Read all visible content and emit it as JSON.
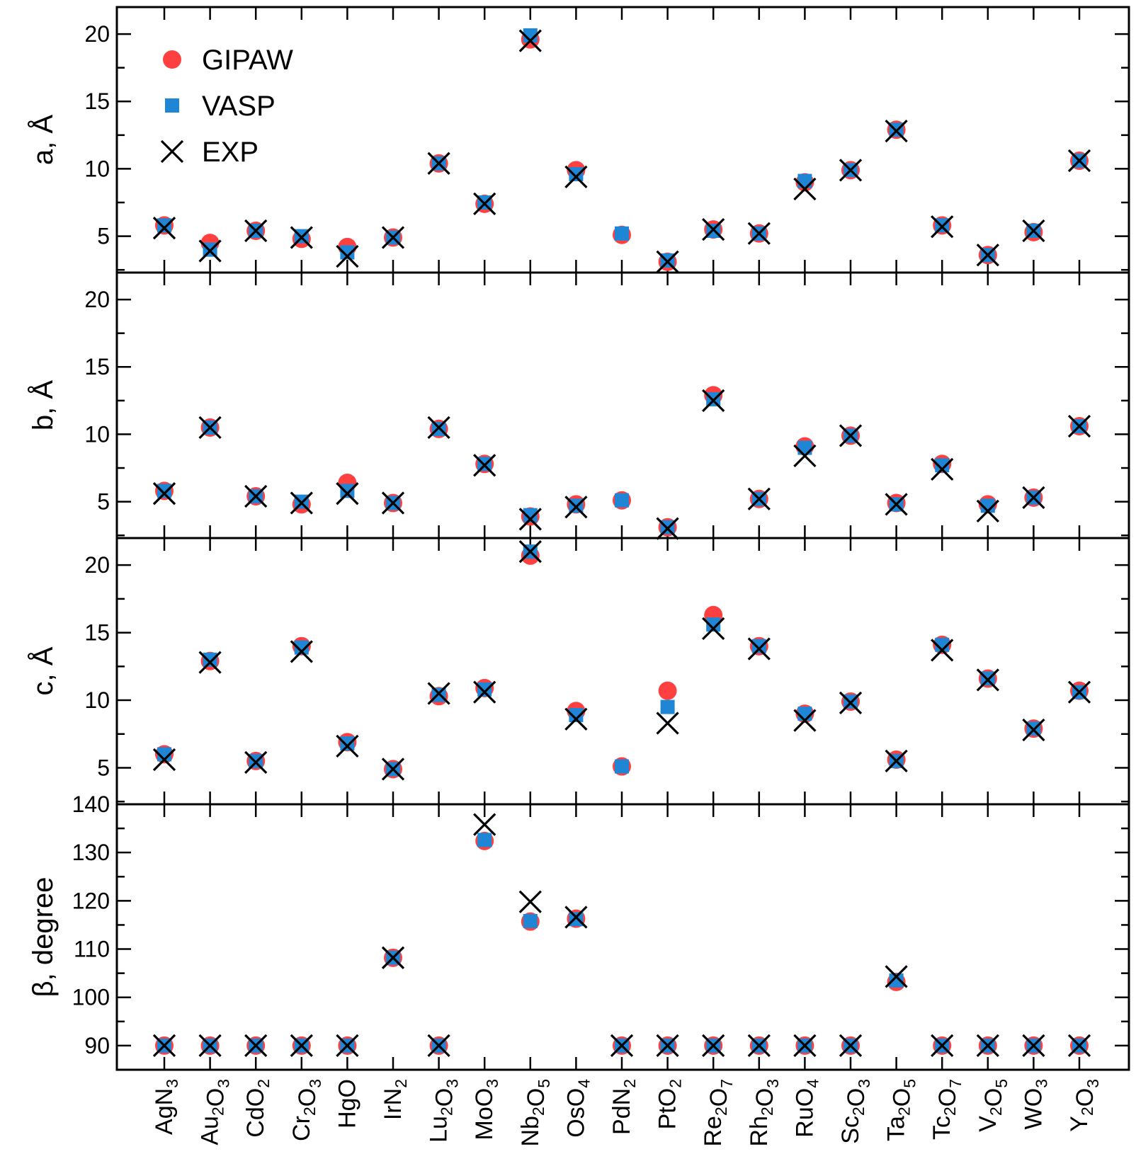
{
  "chart_data": {
    "type": "scatter",
    "categories": [
      "AgN3",
      "Au2O3",
      "CdO2",
      "Cr2O3",
      "HgO",
      "IrN2",
      "Lu2O3",
      "MoO3",
      "Nb2O5",
      "OsO4",
      "PdN2",
      "PtO2",
      "Re2O7",
      "Rh2O3",
      "RuO4",
      "Sc2O3",
      "Ta2O5",
      "Tc2O7",
      "V2O5",
      "WO3",
      "Y2O3"
    ],
    "category_labels": [
      [
        {
          "t": "AgN",
          "s": false
        },
        {
          "t": "3",
          "s": true
        }
      ],
      [
        {
          "t": "Au",
          "s": false
        },
        {
          "t": "2",
          "s": true
        },
        {
          "t": "O",
          "s": false
        },
        {
          "t": "3",
          "s": true
        }
      ],
      [
        {
          "t": "CdO",
          "s": false
        },
        {
          "t": "2",
          "s": true
        }
      ],
      [
        {
          "t": "Cr",
          "s": false
        },
        {
          "t": "2",
          "s": true
        },
        {
          "t": "O",
          "s": false
        },
        {
          "t": "3",
          "s": true
        }
      ],
      [
        {
          "t": "HgO",
          "s": false
        }
      ],
      [
        {
          "t": "IrN",
          "s": false
        },
        {
          "t": "2",
          "s": true
        }
      ],
      [
        {
          "t": "Lu",
          "s": false
        },
        {
          "t": "2",
          "s": true
        },
        {
          "t": "O",
          "s": false
        },
        {
          "t": "3",
          "s": true
        }
      ],
      [
        {
          "t": "MoO",
          "s": false
        },
        {
          "t": "3",
          "s": true
        }
      ],
      [
        {
          "t": "Nb",
          "s": false
        },
        {
          "t": "2",
          "s": true
        },
        {
          "t": "O",
          "s": false
        },
        {
          "t": "5",
          "s": true
        }
      ],
      [
        {
          "t": "OsO",
          "s": false
        },
        {
          "t": "4",
          "s": true
        }
      ],
      [
        {
          "t": "PdN",
          "s": false
        },
        {
          "t": "2",
          "s": true
        }
      ],
      [
        {
          "t": "PtO",
          "s": false
        },
        {
          "t": "2",
          "s": true
        }
      ],
      [
        {
          "t": "Re",
          "s": false
        },
        {
          "t": "2",
          "s": true
        },
        {
          "t": "O",
          "s": false
        },
        {
          "t": "7",
          "s": true
        }
      ],
      [
        {
          "t": "Rh",
          "s": false
        },
        {
          "t": "2",
          "s": true
        },
        {
          "t": "O",
          "s": false
        },
        {
          "t": "3",
          "s": true
        }
      ],
      [
        {
          "t": "RuO",
          "s": false
        },
        {
          "t": "4",
          "s": true
        }
      ],
      [
        {
          "t": "Sc",
          "s": false
        },
        {
          "t": "2",
          "s": true
        },
        {
          "t": "O",
          "s": false
        },
        {
          "t": "3",
          "s": true
        }
      ],
      [
        {
          "t": "Ta",
          "s": false
        },
        {
          "t": "2",
          "s": true
        },
        {
          "t": "O",
          "s": false
        },
        {
          "t": "5",
          "s": true
        }
      ],
      [
        {
          "t": "Tc",
          "s": false
        },
        {
          "t": "2",
          "s": true
        },
        {
          "t": "O",
          "s": false
        },
        {
          "t": "7",
          "s": true
        }
      ],
      [
        {
          "t": "V",
          "s": false
        },
        {
          "t": "2",
          "s": true
        },
        {
          "t": "O",
          "s": false
        },
        {
          "t": "5",
          "s": true
        }
      ],
      [
        {
          "t": "WO",
          "s": false
        },
        {
          "t": "3",
          "s": true
        }
      ],
      [
        {
          "t": "Y",
          "s": false
        },
        {
          "t": "2",
          "s": true
        },
        {
          "t": "O",
          "s": false
        },
        {
          "t": "3",
          "s": true
        }
      ]
    ],
    "legend": {
      "position": "top-left",
      "entries": [
        {
          "name": "GIPAW",
          "marker": "circle",
          "color": "#ff4040"
        },
        {
          "name": "VASP",
          "marker": "square",
          "color": "#1f86d6"
        },
        {
          "name": "EXP",
          "marker": "x",
          "color": "#000000"
        }
      ]
    },
    "panels": [
      {
        "ylabel": "a, Å",
        "ylim": [
          2.3,
          22
        ],
        "yticks": [
          5,
          10,
          15,
          20
        ],
        "series": [
          {
            "name": "GIPAW",
            "values": [
              5.8,
              4.5,
              5.4,
              4.8,
              4.2,
              4.9,
              10.4,
              7.4,
              19.6,
              9.9,
              5.1,
              3.1,
              5.5,
              5.2,
              9.0,
              9.9,
              12.9,
              5.8,
              3.6,
              5.3,
              10.6
            ]
          },
          {
            "name": "VASP",
            "values": [
              5.8,
              4.0,
              5.4,
              5.0,
              3.8,
              4.9,
              10.4,
              7.5,
              19.9,
              9.6,
              5.2,
              3.2,
              5.4,
              5.2,
              9.1,
              9.9,
              12.9,
              5.8,
              3.6,
              5.4,
              10.6
            ]
          },
          {
            "name": "EXP",
            "values": [
              5.6,
              3.9,
              5.4,
              4.9,
              3.5,
              4.9,
              10.4,
              7.4,
              19.5,
              9.4,
              null,
              3.1,
              5.5,
              5.2,
              8.5,
              9.9,
              12.8,
              5.7,
              3.6,
              5.4,
              10.6
            ]
          }
        ]
      },
      {
        "ylabel": "b, Å",
        "ylim": [
          2.3,
          22
        ],
        "yticks": [
          5,
          10,
          15,
          20
        ],
        "series": [
          {
            "name": "GIPAW",
            "values": [
              5.8,
              10.5,
              5.4,
              4.8,
              6.4,
              4.9,
              10.4,
              7.8,
              3.9,
              4.8,
              5.1,
              3.1,
              12.9,
              5.2,
              9.1,
              9.9,
              4.9,
              7.8,
              4.8,
              5.3,
              10.6
            ]
          },
          {
            "name": "VASP",
            "values": [
              5.8,
              10.5,
              5.4,
              5.0,
              5.8,
              4.9,
              10.4,
              7.8,
              4.0,
              4.7,
              5.1,
              3.1,
              12.6,
              5.2,
              9.0,
              9.9,
              4.8,
              7.7,
              4.7,
              5.3,
              10.6
            ]
          },
          {
            "name": "EXP",
            "values": [
              5.6,
              10.5,
              5.4,
              4.9,
              5.6,
              4.9,
              10.5,
              7.7,
              3.7,
              4.6,
              null,
              3.0,
              12.5,
              5.2,
              8.4,
              9.9,
              4.8,
              7.4,
              4.3,
              5.3,
              10.6
            ]
          }
        ]
      },
      {
        "ylabel": "c, Å",
        "ylim": [
          2.3,
          22
        ],
        "yticks": [
          5,
          10,
          15,
          20
        ],
        "series": [
          {
            "name": "GIPAW",
            "values": [
              6.0,
              12.9,
              5.5,
              14.0,
              6.9,
              4.9,
              10.3,
              10.9,
              20.7,
              9.2,
              5.1,
              10.7,
              16.3,
              14.0,
              9.0,
              9.9,
              5.6,
              14.1,
              11.6,
              7.9,
              10.7
            ]
          },
          {
            "name": "VASP",
            "values": [
              6.0,
              13.0,
              5.5,
              13.9,
              6.8,
              4.9,
              10.4,
              10.8,
              21.0,
              8.9,
              5.1,
              9.5,
              15.6,
              14.0,
              9.0,
              9.9,
              5.5,
              14.1,
              11.6,
              7.9,
              10.6
            ]
          },
          {
            "name": "EXP",
            "values": [
              5.6,
              12.8,
              5.4,
              13.6,
              6.6,
              4.9,
              10.5,
              10.6,
              21.0,
              8.6,
              null,
              8.3,
              15.3,
              13.8,
              8.5,
              9.8,
              5.5,
              13.7,
              11.5,
              7.8,
              10.6
            ]
          }
        ]
      },
      {
        "ylabel": "β, degree",
        "ylim": [
          85,
          140
        ],
        "yticks": [
          90,
          100,
          110,
          120,
          130,
          140
        ],
        "series": [
          {
            "name": "GIPAW",
            "values": [
              90,
              90,
              90,
              90,
              90,
              108.2,
              90,
              132.4,
              115.7,
              116.3,
              90,
              90,
              90,
              90,
              90,
              90,
              103.2,
              90,
              90,
              90,
              90
            ]
          },
          {
            "name": "VASP",
            "values": [
              90,
              90,
              90,
              90,
              90,
              108.2,
              90,
              132.6,
              115.8,
              116.2,
              90,
              90,
              90,
              90,
              90,
              90,
              103.5,
              90,
              90,
              90,
              90
            ]
          },
          {
            "name": "EXP",
            "values": [
              90,
              90,
              90,
              90,
              90,
              108.2,
              90,
              135.8,
              119.8,
              116.6,
              90,
              90,
              90,
              90,
              90,
              90,
              104.3,
              90,
              90,
              90,
              90
            ]
          }
        ]
      }
    ]
  }
}
